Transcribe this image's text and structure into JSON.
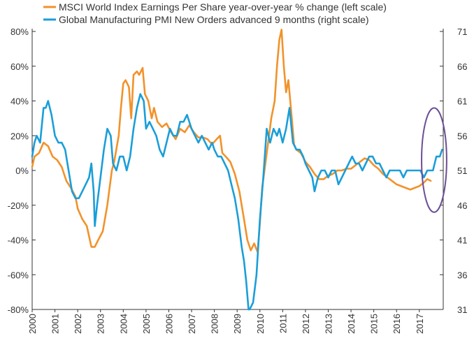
{
  "chart_data": {
    "type": "line",
    "title": "",
    "xlabel": "",
    "ylabel_left": "",
    "ylabel_right": "",
    "x_ticks": [
      "2000",
      "2001",
      "2002",
      "2003",
      "2004",
      "2005",
      "2006",
      "2007",
      "2008",
      "2009",
      "2010",
      "2011",
      "2012",
      "2013",
      "2014",
      "2015",
      "2016",
      "2017"
    ],
    "xlim": [
      2000,
      2018.05
    ],
    "left_axis": {
      "ylim": [
        -80,
        80
      ],
      "ticks": [
        80,
        60,
        40,
        20,
        0,
        -20,
        -40,
        -60,
        -80
      ],
      "tick_suffix": "%"
    },
    "right_axis": {
      "ylim": [
        31,
        71
      ],
      "ticks": [
        71,
        66,
        61,
        56,
        51,
        46,
        41,
        36,
        31
      ]
    },
    "legend": {
      "position": "top-left"
    },
    "grid": false,
    "series": [
      {
        "name": "MSCI World Index Earnings Per Share year-over-year % change (left scale)",
        "axis": "left",
        "color": "#F2922A",
        "points": [
          [
            2000.0,
            2
          ],
          [
            2000.1,
            8
          ],
          [
            2000.3,
            10
          ],
          [
            2000.5,
            16
          ],
          [
            2000.7,
            14
          ],
          [
            2000.9,
            8
          ],
          [
            2001.1,
            6
          ],
          [
            2001.3,
            2
          ],
          [
            2001.5,
            -6
          ],
          [
            2001.7,
            -10
          ],
          [
            2001.9,
            -15
          ],
          [
            2002.0,
            -22
          ],
          [
            2002.2,
            -28
          ],
          [
            2002.4,
            -32
          ],
          [
            2002.6,
            -44
          ],
          [
            2002.75,
            -44
          ],
          [
            2002.9,
            -40
          ],
          [
            2003.1,
            -35
          ],
          [
            2003.3,
            -20
          ],
          [
            2003.5,
            0
          ],
          [
            2003.6,
            5
          ],
          [
            2003.8,
            20
          ],
          [
            2003.9,
            36
          ],
          [
            2004.0,
            50
          ],
          [
            2004.1,
            52
          ],
          [
            2004.25,
            48
          ],
          [
            2004.35,
            30
          ],
          [
            2004.45,
            55
          ],
          [
            2004.6,
            57
          ],
          [
            2004.7,
            55
          ],
          [
            2004.85,
            59
          ],
          [
            2004.95,
            44
          ],
          [
            2005.1,
            40
          ],
          [
            2005.25,
            30
          ],
          [
            2005.35,
            36
          ],
          [
            2005.5,
            28
          ],
          [
            2005.7,
            25
          ],
          [
            2005.9,
            27
          ],
          [
            2006.1,
            22
          ],
          [
            2006.3,
            18
          ],
          [
            2006.5,
            24
          ],
          [
            2006.7,
            22
          ],
          [
            2006.9,
            26
          ],
          [
            2007.1,
            22
          ],
          [
            2007.3,
            19
          ],
          [
            2007.5,
            19
          ],
          [
            2007.7,
            18
          ],
          [
            2007.9,
            15
          ],
          [
            2008.1,
            18
          ],
          [
            2008.25,
            20
          ],
          [
            2008.35,
            10
          ],
          [
            2008.5,
            8
          ],
          [
            2008.7,
            5
          ],
          [
            2008.9,
            -2
          ],
          [
            2009.1,
            -12
          ],
          [
            2009.3,
            -28
          ],
          [
            2009.45,
            -40
          ],
          [
            2009.6,
            -46
          ],
          [
            2009.75,
            -42
          ],
          [
            2009.9,
            -47
          ],
          [
            2010.0,
            -30
          ],
          [
            2010.1,
            -10
          ],
          [
            2010.2,
            0
          ],
          [
            2010.35,
            15
          ],
          [
            2010.5,
            30
          ],
          [
            2010.65,
            40
          ],
          [
            2010.75,
            60
          ],
          [
            2010.85,
            75
          ],
          [
            2010.95,
            81
          ],
          [
            2011.05,
            60
          ],
          [
            2011.15,
            45
          ],
          [
            2011.25,
            52
          ],
          [
            2011.4,
            30
          ],
          [
            2011.5,
            15
          ],
          [
            2011.6,
            12
          ],
          [
            2011.8,
            10
          ],
          [
            2012.0,
            5
          ],
          [
            2012.2,
            2
          ],
          [
            2012.4,
            -2
          ],
          [
            2012.6,
            -5
          ],
          [
            2012.8,
            -5
          ],
          [
            2013.0,
            -3
          ],
          [
            2013.2,
            -2
          ],
          [
            2013.4,
            0
          ],
          [
            2013.6,
            0
          ],
          [
            2013.8,
            1
          ],
          [
            2014.0,
            1
          ],
          [
            2014.2,
            3
          ],
          [
            2014.4,
            5
          ],
          [
            2014.6,
            7
          ],
          [
            2014.8,
            6
          ],
          [
            2015.0,
            3
          ],
          [
            2015.2,
            1
          ],
          [
            2015.4,
            -2
          ],
          [
            2015.6,
            -4
          ],
          [
            2015.8,
            -6
          ],
          [
            2016.0,
            -8
          ],
          [
            2016.2,
            -9
          ],
          [
            2016.4,
            -10
          ],
          [
            2016.6,
            -11
          ],
          [
            2016.8,
            -10
          ],
          [
            2017.0,
            -9
          ],
          [
            2017.2,
            -7
          ],
          [
            2017.35,
            -5
          ],
          [
            2017.5,
            -6
          ]
        ]
      },
      {
        "name": "Global Manufacturing PMI New Orders advanced 9 months (right scale)",
        "axis": "right",
        "color": "#1A9ED9",
        "points": [
          [
            2000.0,
            53
          ],
          [
            2000.1,
            55
          ],
          [
            2000.2,
            56
          ],
          [
            2000.35,
            55
          ],
          [
            2000.5,
            60
          ],
          [
            2000.6,
            60
          ],
          [
            2000.7,
            61
          ],
          [
            2000.85,
            59
          ],
          [
            2001.0,
            56
          ],
          [
            2001.15,
            55
          ],
          [
            2001.3,
            55
          ],
          [
            2001.45,
            54
          ],
          [
            2001.6,
            51
          ],
          [
            2001.75,
            48
          ],
          [
            2001.9,
            47
          ],
          [
            2002.05,
            47
          ],
          [
            2002.2,
            48
          ],
          [
            2002.35,
            49
          ],
          [
            2002.5,
            50
          ],
          [
            2002.6,
            52
          ],
          [
            2002.7,
            48
          ],
          [
            2002.75,
            43
          ],
          [
            2002.85,
            46
          ],
          [
            2003.0,
            50
          ],
          [
            2003.15,
            54
          ],
          [
            2003.3,
            57
          ],
          [
            2003.45,
            56
          ],
          [
            2003.55,
            52
          ],
          [
            2003.7,
            51
          ],
          [
            2003.85,
            53
          ],
          [
            2004.0,
            53
          ],
          [
            2004.15,
            51
          ],
          [
            2004.3,
            53
          ],
          [
            2004.45,
            57
          ],
          [
            2004.6,
            60
          ],
          [
            2004.75,
            62
          ],
          [
            2004.9,
            61
          ],
          [
            2005.0,
            57
          ],
          [
            2005.15,
            58
          ],
          [
            2005.3,
            57
          ],
          [
            2005.45,
            56
          ],
          [
            2005.6,
            54
          ],
          [
            2005.75,
            53
          ],
          [
            2005.9,
            55
          ],
          [
            2006.05,
            57
          ],
          [
            2006.2,
            56
          ],
          [
            2006.35,
            56
          ],
          [
            2006.5,
            58
          ],
          [
            2006.65,
            58
          ],
          [
            2006.8,
            59
          ],
          [
            2007.0,
            57
          ],
          [
            2007.15,
            56
          ],
          [
            2007.3,
            55
          ],
          [
            2007.45,
            56
          ],
          [
            2007.6,
            55
          ],
          [
            2007.75,
            54
          ],
          [
            2007.9,
            55
          ],
          [
            2008.0,
            54
          ],
          [
            2008.15,
            53
          ],
          [
            2008.3,
            53
          ],
          [
            2008.45,
            52
          ],
          [
            2008.6,
            51
          ],
          [
            2008.75,
            49
          ],
          [
            2008.9,
            47
          ],
          [
            2009.05,
            44
          ],
          [
            2009.2,
            40
          ],
          [
            2009.3,
            38
          ],
          [
            2009.4,
            35
          ],
          [
            2009.5,
            31
          ],
          [
            2009.55,
            31
          ],
          [
            2009.7,
            32
          ],
          [
            2009.85,
            36
          ],
          [
            2010.0,
            44
          ],
          [
            2010.15,
            50
          ],
          [
            2010.3,
            57
          ],
          [
            2010.45,
            55
          ],
          [
            2010.6,
            57
          ],
          [
            2010.75,
            56
          ],
          [
            2010.85,
            57
          ],
          [
            2011.0,
            55
          ],
          [
            2011.15,
            57
          ],
          [
            2011.3,
            60
          ],
          [
            2011.45,
            55
          ],
          [
            2011.6,
            54
          ],
          [
            2011.75,
            54
          ],
          [
            2011.9,
            53
          ],
          [
            2012.0,
            52
          ],
          [
            2012.15,
            51
          ],
          [
            2012.3,
            50
          ],
          [
            2012.4,
            48
          ],
          [
            2012.55,
            50
          ],
          [
            2012.7,
            51
          ],
          [
            2012.85,
            51
          ],
          [
            2013.0,
            50
          ],
          [
            2013.15,
            51
          ],
          [
            2013.3,
            51
          ],
          [
            2013.45,
            49
          ],
          [
            2013.6,
            50
          ],
          [
            2013.75,
            51
          ],
          [
            2013.9,
            52
          ],
          [
            2014.05,
            53
          ],
          [
            2014.2,
            52
          ],
          [
            2014.35,
            52
          ],
          [
            2014.5,
            51
          ],
          [
            2014.65,
            52
          ],
          [
            2014.8,
            53
          ],
          [
            2014.95,
            53
          ],
          [
            2015.1,
            52
          ],
          [
            2015.25,
            52
          ],
          [
            2015.4,
            51
          ],
          [
            2015.55,
            50
          ],
          [
            2015.7,
            51
          ],
          [
            2015.85,
            51
          ],
          [
            2016.0,
            51
          ],
          [
            2016.15,
            51
          ],
          [
            2016.3,
            50
          ],
          [
            2016.45,
            51
          ],
          [
            2016.6,
            51
          ],
          [
            2016.75,
            51
          ],
          [
            2016.9,
            51
          ],
          [
            2017.05,
            51
          ],
          [
            2017.2,
            50
          ],
          [
            2017.35,
            51
          ],
          [
            2017.5,
            51
          ],
          [
            2017.6,
            51
          ],
          [
            2017.75,
            53
          ],
          [
            2017.9,
            53
          ],
          [
            2018.0,
            54
          ]
        ]
      }
    ],
    "annotations": [
      {
        "type": "ellipse",
        "color": "#6B4E96",
        "x_center": 2017.65,
        "y_center_right": 52.5,
        "x_radius": 0.55,
        "y_radius_right": 7.5
      }
    ]
  }
}
